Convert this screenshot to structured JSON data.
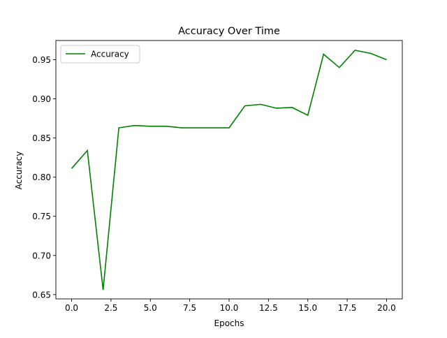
{
  "chart_data": {
    "type": "line",
    "title": "Accuracy Over Time",
    "xlabel": "Epochs",
    "ylabel": "Accuracy",
    "xlim": [
      -1.0,
      21.0
    ],
    "ylim": [
      0.6445,
      0.9745
    ],
    "xticks": [
      0.0,
      2.5,
      5.0,
      7.5,
      10.0,
      12.5,
      15.0,
      17.5,
      20.0
    ],
    "xtick_labels": [
      "0.0",
      "2.5",
      "5.0",
      "7.5",
      "10.0",
      "12.5",
      "15.0",
      "17.5",
      "20.0"
    ],
    "yticks": [
      0.65,
      0.7,
      0.75,
      0.8,
      0.85,
      0.9,
      0.95
    ],
    "ytick_labels": [
      "0.65",
      "0.70",
      "0.75",
      "0.80",
      "0.85",
      "0.90",
      "0.95"
    ],
    "grid": false,
    "legend": {
      "position": "upper-left",
      "entries": [
        "Accuracy"
      ]
    },
    "series": [
      {
        "name": "Accuracy",
        "color": "#008000",
        "x": [
          0,
          1,
          2,
          3,
          4,
          5,
          6,
          7,
          8,
          9,
          10,
          11,
          12,
          13,
          14,
          15,
          16,
          17,
          18,
          19,
          20
        ],
        "y": [
          0.811,
          0.834,
          0.656,
          0.863,
          0.866,
          0.865,
          0.865,
          0.863,
          0.863,
          0.863,
          0.863,
          0.891,
          0.893,
          0.888,
          0.889,
          0.879,
          0.957,
          0.94,
          0.962,
          0.958,
          0.95
        ]
      }
    ]
  }
}
